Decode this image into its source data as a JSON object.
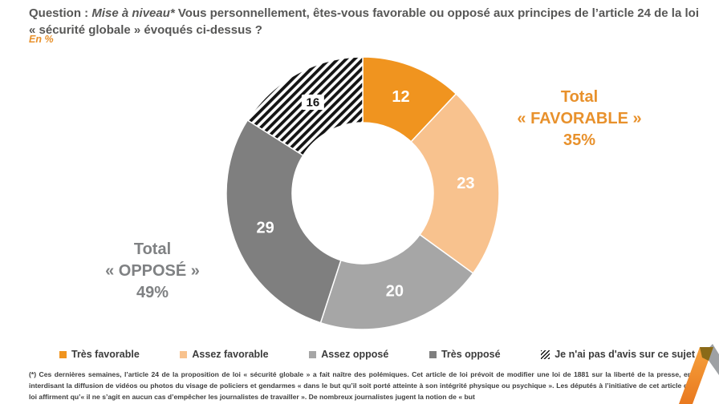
{
  "header": {
    "question_prefix": "Question :",
    "question_italic": "Mise à niveau*",
    "question_rest": "Vous personnellement, êtes-vous favorable ou opposé aux principes de l’article 24 de la loi « sécurité globale » évoqués ci-dessus ?",
    "unit_label": "En %"
  },
  "chart_data": {
    "type": "pie",
    "subtype": "donut",
    "title": "Question : Mise à niveau* Vous personnellement, êtes-vous favorable ou opposé aux principes de l’article 24 de la loi « sécurité globale » évoqués ci-dessus ?",
    "unit": "%",
    "categories": [
      "Très favorable",
      "Assez favorable",
      "Assez opposé",
      "Très opposé",
      "Je n'ai pas d'avis sur ce sujet"
    ],
    "values": [
      12,
      23,
      20,
      29,
      16
    ],
    "colors": [
      "#F0941F",
      "#F8C28E",
      "#A6A6A6",
      "#7F7F7F",
      "hatch"
    ],
    "start_angle_deg": 0,
    "direction": "clockwise",
    "legend_position": "bottom",
    "annotations": [
      {
        "id": "total-favorable",
        "lines": [
          "Total",
          "« FAVORABLE »",
          "35%"
        ],
        "value": 35,
        "side": "right",
        "color": "#E8912C"
      },
      {
        "id": "total-oppose",
        "lines": [
          "Total",
          "« OPPOSÉ »",
          "49%"
        ],
        "value": 49,
        "side": "left",
        "color": "#7F8183"
      }
    ]
  },
  "footnote": {
    "text": "(*) Ces dernières semaines, l’article 24 de la proposition de loi « sécurité globale » a fait naître des polémiques. Cet article de loi prévoit de modifier une loi de 1881 sur la liberté de la presse, en interdisant la diffusion de vidéos ou photos du visage de policiers et gendarmes « dans le but qu’il soit porté atteinte à son intégrité physique ou psychique ». Les députés à l’initiative de cet article de loi affirment qu’« il ne s’agit en aucun cas d’empêcher les journalistes de travailler ». De nombreux journalistes jugent la notion de « but"
  },
  "logo": {
    "name": "elabe-logo",
    "orange": "#EE7D23",
    "gray": "#9EA1A4",
    "overlap": "#8A6A18"
  }
}
